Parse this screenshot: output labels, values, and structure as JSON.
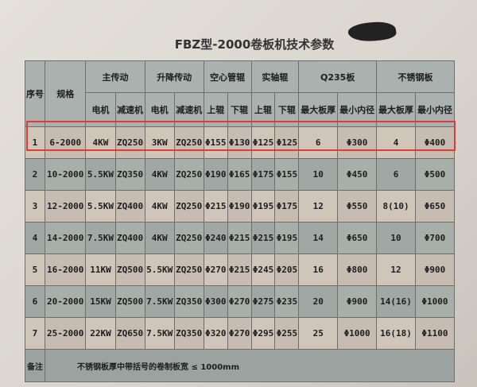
{
  "title": "FBZ型-2000卷板机技术参数",
  "headers": {
    "no": "序号",
    "spec": "规格",
    "groups": [
      "主传动",
      "升降传动",
      "空心管辊",
      "实轴辊",
      "Q235板",
      "不锈钢板"
    ],
    "sub": [
      "电机",
      "减速机",
      "电机",
      "减速机",
      "上辊",
      "下辊",
      "上辊",
      "下辊",
      "最大板厚",
      "最小内径",
      "最大板厚",
      "最小内径"
    ]
  },
  "rows": [
    [
      "1",
      "6-2000",
      "4KW",
      "ZQ250",
      "3KW",
      "ZQ250",
      "Φ155",
      "Φ130",
      "Φ125",
      "Φ125",
      "6",
      "Φ300",
      "4",
      "Φ400"
    ],
    [
      "2",
      "10-2000",
      "5.5KW",
      "ZQ350",
      "4KW",
      "ZQ250",
      "Φ190",
      "Φ165",
      "Φ175",
      "Φ155",
      "10",
      "Φ450",
      "6",
      "Φ500"
    ],
    [
      "3",
      "12-2000",
      "5.5KW",
      "ZQ400",
      "4KW",
      "ZQ250",
      "Φ215",
      "Φ190",
      "Φ195",
      "Φ175",
      "12",
      "Φ550",
      "8(10)",
      "Φ650"
    ],
    [
      "4",
      "14-2000",
      "7.5KW",
      "ZQ400",
      "4KW",
      "ZQ250",
      "Φ240",
      "Φ215",
      "Φ215",
      "Φ195",
      "14",
      "Φ650",
      "10",
      "Φ700"
    ],
    [
      "5",
      "16-2000",
      "11KW",
      "ZQ500",
      "5.5KW",
      "ZQ250",
      "Φ270",
      "Φ215",
      "Φ245",
      "Φ205",
      "16",
      "Φ800",
      "12",
      "Φ900"
    ],
    [
      "6",
      "20-2000",
      "15KW",
      "ZQ500",
      "7.5KW",
      "ZQ350",
      "Φ300",
      "Φ270",
      "Φ275",
      "Φ235",
      "20",
      "Φ900",
      "14(16)",
      "Φ1000"
    ],
    [
      "7",
      "25-2000",
      "22KW",
      "ZQ650",
      "7.5KW",
      "ZQ350",
      "Φ320",
      "Φ270",
      "Φ295",
      "Φ255",
      "25",
      "Φ1000",
      "16(18)",
      "Φ1100"
    ]
  ],
  "note": {
    "label": "备注",
    "text": "不锈钢板厚中带括号的卷制板宽 ≤ 1000mm"
  },
  "highlight_color": "#e53935"
}
